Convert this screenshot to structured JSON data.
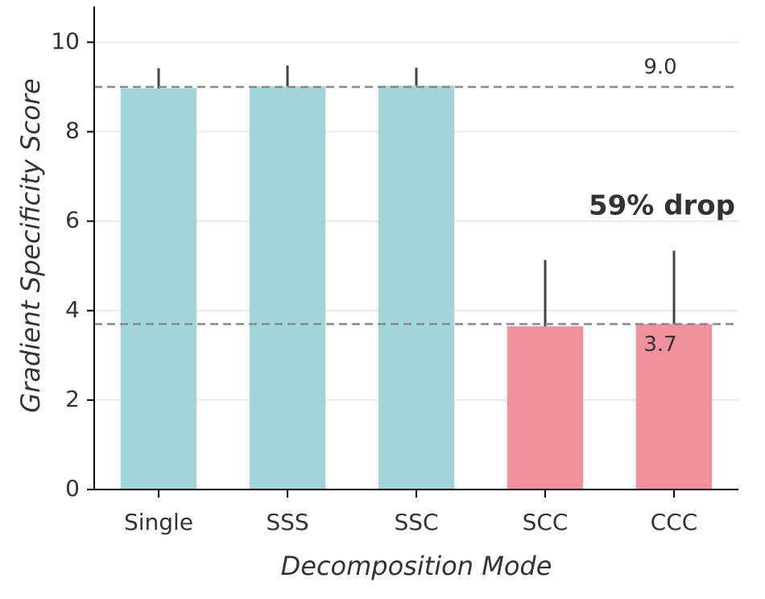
{
  "chart_data": {
    "type": "bar",
    "xlabel": "Decomposition Mode",
    "ylabel": "Gradient Specificity Score",
    "categories": [
      "Single",
      "SSS",
      "SSC",
      "SCC",
      "CCC"
    ],
    "values": [
      8.97,
      9.01,
      9.03,
      3.65,
      3.7
    ],
    "errors": [
      0.45,
      0.47,
      0.4,
      1.48,
      1.64
    ],
    "colors": [
      "#a0d6d7",
      "#a0d6d7",
      "#a0d6d7",
      "#f0919e",
      "#f0919e"
    ],
    "error_color": "#444444",
    "ylim": [
      0,
      10.8
    ],
    "yticks": [
      0,
      2,
      4,
      6,
      8,
      10
    ],
    "grid": true,
    "reference_lines": [
      {
        "value": 9.0,
        "label": "9.0"
      },
      3.7
    ],
    "annotation": {
      "text": "59% drop",
      "color": "#c8407f"
    }
  }
}
